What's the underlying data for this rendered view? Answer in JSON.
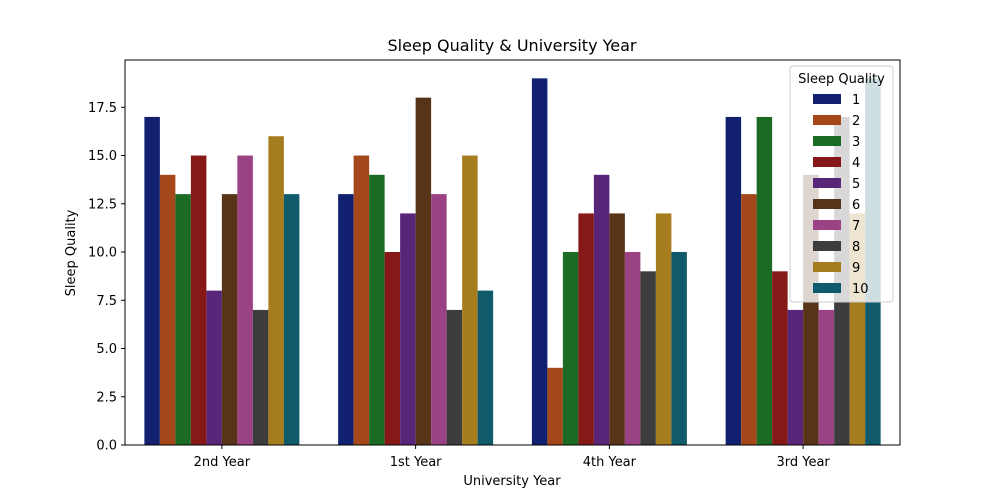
{
  "chart_data": {
    "type": "bar",
    "title": "Sleep Quality & University Year",
    "xlabel": "University Year",
    "ylabel": "Sleep Quality",
    "categories": [
      "2nd Year",
      "1st Year",
      "4th Year",
      "3rd Year"
    ],
    "ylim": [
      0,
      19.95
    ],
    "yticks": [
      "0.0",
      "2.5",
      "5.0",
      "7.5",
      "10.0",
      "12.5",
      "15.0",
      "17.5"
    ],
    "grid": false,
    "legend": {
      "title": "Sleep Quality",
      "placement": "top-right"
    },
    "series": [
      {
        "name": "1",
        "color": "#12216f",
        "values": [
          17,
          13,
          19,
          17
        ]
      },
      {
        "name": "2",
        "color": "#a4481c",
        "values": [
          14,
          15,
          4,
          13
        ]
      },
      {
        "name": "3",
        "color": "#1c6b25",
        "values": [
          13,
          14,
          10,
          17
        ]
      },
      {
        "name": "4",
        "color": "#861818",
        "values": [
          15,
          10,
          12,
          9
        ]
      },
      {
        "name": "5",
        "color": "#582578",
        "values": [
          8,
          12,
          14,
          7
        ]
      },
      {
        "name": "6",
        "color": "#573418",
        "values": [
          13,
          18,
          12,
          14
        ]
      },
      {
        "name": "7",
        "color": "#9b4285",
        "values": [
          15,
          13,
          10,
          7
        ]
      },
      {
        "name": "8",
        "color": "#3d3d3d",
        "values": [
          7,
          7,
          9,
          17
        ]
      },
      {
        "name": "9",
        "color": "#a57c1e",
        "values": [
          16,
          15,
          12,
          12
        ]
      },
      {
        "name": "10",
        "color": "#0f5b6b",
        "values": [
          13,
          8,
          10,
          19
        ]
      }
    ]
  }
}
